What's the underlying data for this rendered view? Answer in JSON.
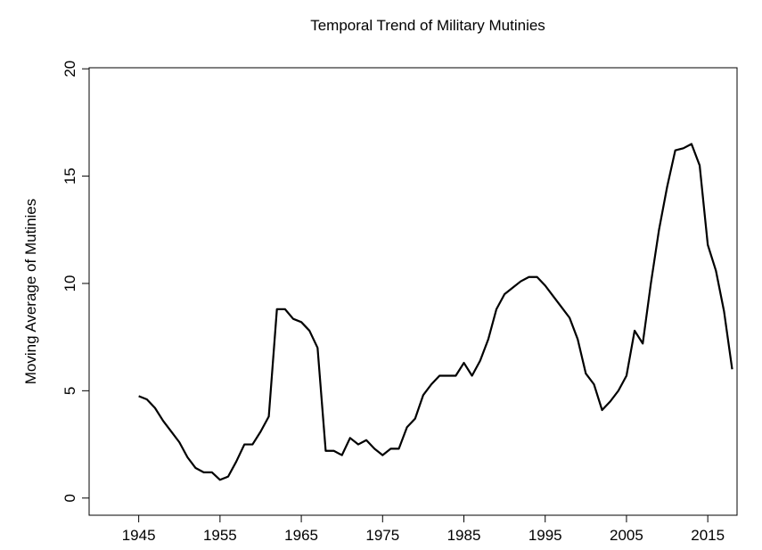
{
  "chart_data": {
    "type": "line",
    "title": "Temporal Trend of Military Mutinies",
    "y_label": "Moving Average of Mutinies",
    "x": [
      1945,
      1946,
      1947,
      1948,
      1949,
      1950,
      1951,
      1952,
      1953,
      1954,
      1955,
      1956,
      1957,
      1958,
      1959,
      1960,
      1961,
      1962,
      1963,
      1964,
      1965,
      1966,
      1967,
      1968,
      1969,
      1970,
      1971,
      1972,
      1973,
      1974,
      1975,
      1976,
      1977,
      1978,
      1979,
      1980,
      1981,
      1982,
      1983,
      1984,
      1985,
      1986,
      1987,
      1988,
      1989,
      1990,
      1991,
      1992,
      1993,
      1994,
      1995,
      1996,
      1997,
      1998,
      1999,
      2000,
      2001,
      2002,
      2003,
      2004,
      2005,
      2006,
      2007,
      2008,
      2009,
      2010,
      2011,
      2012,
      2013,
      2014,
      2015,
      2016,
      2017,
      2018
    ],
    "series": [
      {
        "name": "Moving Average of Mutinies",
        "color": "#000000",
        "values": [
          4.75,
          4.6,
          4.2,
          3.6,
          3.1,
          2.6,
          1.9,
          1.4,
          1.2,
          1.2,
          0.85,
          1.0,
          1.7,
          2.5,
          2.5,
          3.1,
          3.8,
          8.8,
          8.8,
          8.35,
          8.2,
          7.8,
          7.0,
          2.2,
          2.2,
          2.0,
          2.8,
          2.5,
          2.7,
          2.3,
          2.0,
          2.3,
          2.3,
          3.3,
          3.7,
          4.8,
          5.3,
          5.7,
          5.7,
          5.7,
          6.3,
          5.7,
          6.4,
          7.4,
          8.8,
          9.5,
          9.8,
          10.1,
          10.3,
          10.3,
          9.9,
          9.4,
          8.9,
          8.4,
          7.4,
          5.8,
          5.3,
          4.1,
          4.5,
          5.0,
          5.7,
          7.8,
          7.2,
          10.0,
          12.5,
          14.5,
          16.2,
          16.3,
          16.5,
          15.5,
          11.8,
          10.6,
          8.7,
          6.0
        ]
      }
    ],
    "xlim": [
      1938.9,
      2018.6
    ],
    "xticks": [
      1945,
      1955,
      1965,
      1975,
      1985,
      1995,
      2005,
      2015
    ],
    "ylim": [
      -0.8,
      20.05
    ],
    "yticks": [
      0,
      5,
      10,
      15,
      20
    ]
  }
}
